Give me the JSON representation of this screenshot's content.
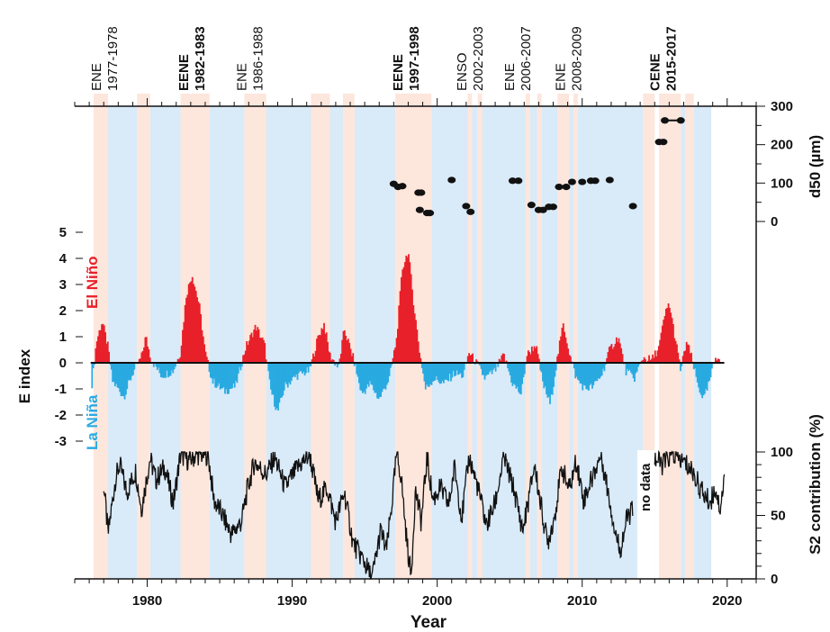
{
  "chart_data": {
    "type": "line",
    "x_axis": {
      "label": "Year",
      "range": [
        1975,
        2022
      ],
      "ticks": [
        1980,
        1990,
        2000,
        2010,
        2020
      ]
    },
    "e_index_axis": {
      "label": "E index",
      "range": [
        -3,
        5
      ],
      "ticks": [
        5,
        4,
        3,
        2,
        1,
        0,
        -1,
        -2,
        -3
      ]
    },
    "d50_axis": {
      "label": "d50 (µm)",
      "range": [
        0,
        300
      ],
      "ticks": [
        300,
        200,
        100,
        0
      ]
    },
    "s2_axis": {
      "label": "S2 contribution (%)",
      "range": [
        0,
        100
      ],
      "ticks": [
        100,
        50,
        0
      ]
    },
    "phase_labels": {
      "el_nino": "El Niño",
      "la_nina": "La Niña"
    },
    "colors": {
      "el_nino": "#e8202a",
      "la_nina": "#29aae1",
      "nino_shade": "#fde6dc",
      "nina_shade": "#d9eaf8",
      "line": "#111111"
    },
    "no_data_label": "no data",
    "event_labels": [
      {
        "type": "ENE",
        "years": "1977-1978",
        "x": 1977.0,
        "bold": false
      },
      {
        "type": "EENE",
        "years": "1982-1983",
        "x": 1983.0,
        "bold": true
      },
      {
        "type": "ENE",
        "years": "1986-1988",
        "x": 1987.0,
        "bold": false
      },
      {
        "type": "EENE",
        "years": "1997-1998",
        "x": 1997.8,
        "bold": true
      },
      {
        "type": "ENSO",
        "years": "2002-2003",
        "x": 2002.2,
        "bold": false
      },
      {
        "type": "ENE",
        "years": "2006-2007",
        "x": 2005.5,
        "bold": false
      },
      {
        "type": "ENE",
        "years": "2008-2009",
        "x": 2009.0,
        "bold": false
      },
      {
        "type": "CENE",
        "years": "2015-2017",
        "x": 2015.5,
        "bold": true
      }
    ],
    "nino_bands": [
      [
        1976.3,
        1977.3
      ],
      [
        1979.3,
        1980.2
      ],
      [
        1982.3,
        1984.3
      ],
      [
        1986.7,
        1988.2
      ],
      [
        1991.3,
        1992.6
      ],
      [
        1993.5,
        1994.3
      ],
      [
        1997.1,
        1999.6
      ],
      [
        2002.1,
        2002.4
      ],
      [
        2002.8,
        2003.1
      ],
      [
        2006.1,
        2006.4
      ],
      [
        2006.9,
        2007.2
      ],
      [
        2008.3,
        2009.1
      ],
      [
        2009.4,
        2009.7
      ],
      [
        2014.2,
        2015.0
      ],
      [
        2015.3,
        2016.8
      ],
      [
        2017.1,
        2017.7
      ]
    ],
    "nina_bands": [
      [
        1977.3,
        1979.3
      ],
      [
        1980.2,
        1982.3
      ],
      [
        1984.3,
        1986.7
      ],
      [
        1988.2,
        1991.3
      ],
      [
        1992.6,
        1993.5
      ],
      [
        1994.3,
        1997.1
      ],
      [
        1999.6,
        2002.1
      ],
      [
        2002.4,
        2002.8
      ],
      [
        2003.1,
        2006.1
      ],
      [
        2006.4,
        2006.9
      ],
      [
        2007.2,
        2008.3
      ],
      [
        2009.1,
        2009.4
      ],
      [
        2009.7,
        2014.2
      ],
      [
        2016.8,
        2017.1
      ],
      [
        2017.7,
        2018.9
      ]
    ],
    "e_index_keypoints": [
      [
        1976.2,
        -0.8
      ],
      [
        1976.5,
        0.8
      ],
      [
        1976.9,
        1.6
      ],
      [
        1977.3,
        0.6
      ],
      [
        1977.6,
        -0.7
      ],
      [
        1978.4,
        -1.3
      ],
      [
        1979.0,
        -0.4
      ],
      [
        1979.6,
        0.2
      ],
      [
        1979.9,
        1.0
      ],
      [
        1980.3,
        0.1
      ],
      [
        1981.0,
        -0.5
      ],
      [
        1981.8,
        -0.3
      ],
      [
        1982.3,
        0.4
      ],
      [
        1982.7,
        2.6
      ],
      [
        1983.1,
        3.4
      ],
      [
        1983.6,
        2.2
      ],
      [
        1984.0,
        0.4
      ],
      [
        1984.5,
        -0.7
      ],
      [
        1985.3,
        -1.1
      ],
      [
        1986.1,
        -0.9
      ],
      [
        1986.8,
        0.6
      ],
      [
        1987.5,
        1.4
      ],
      [
        1988.1,
        0.7
      ],
      [
        1988.5,
        -1.0
      ],
      [
        1989.0,
        -1.9
      ],
      [
        1989.5,
        -0.9
      ],
      [
        1990.3,
        -0.5
      ],
      [
        1991.2,
        -0.3
      ],
      [
        1991.8,
        1.0
      ],
      [
        1992.2,
        1.5
      ],
      [
        1992.6,
        0.3
      ],
      [
        1993.2,
        -0.2
      ],
      [
        1993.6,
        1.3
      ],
      [
        1994.2,
        0.2
      ],
      [
        1994.8,
        -1.2
      ],
      [
        1995.4,
        -0.8
      ],
      [
        1996.0,
        -1.4
      ],
      [
        1996.7,
        -0.6
      ],
      [
        1997.2,
        0.9
      ],
      [
        1997.6,
        3.6
      ],
      [
        1998.0,
        4.3
      ],
      [
        1998.4,
        2.2
      ],
      [
        1998.8,
        0.4
      ],
      [
        1999.2,
        -1.0
      ],
      [
        1999.8,
        -0.6
      ],
      [
        2000.5,
        -0.8
      ],
      [
        2001.2,
        -0.4
      ],
      [
        2001.8,
        -0.5
      ],
      [
        2002.2,
        0.4
      ],
      [
        2002.7,
        0.0
      ],
      [
        2003.3,
        -0.6
      ],
      [
        2004.0,
        -0.3
      ],
      [
        2004.6,
        0.3
      ],
      [
        2005.2,
        -0.8
      ],
      [
        2005.8,
        -1.2
      ],
      [
        2006.2,
        0.3
      ],
      [
        2006.8,
        0.7
      ],
      [
        2007.3,
        -0.8
      ],
      [
        2007.8,
        -1.6
      ],
      [
        2008.3,
        0.2
      ],
      [
        2008.7,
        1.5
      ],
      [
        2009.2,
        0.2
      ],
      [
        2009.6,
        -0.6
      ],
      [
        2010.2,
        -1.0
      ],
      [
        2010.8,
        -0.9
      ],
      [
        2011.4,
        -0.4
      ],
      [
        2011.9,
        0.5
      ],
      [
        2012.5,
        1.0
      ],
      [
        2013.0,
        -0.3
      ],
      [
        2013.6,
        -0.6
      ],
      [
        2014.2,
        0.2
      ],
      [
        2014.8,
        0.1
      ],
      [
        2015.3,
        0.6
      ],
      [
        2015.7,
        1.8
      ],
      [
        2016.0,
        2.3
      ],
      [
        2016.4,
        1.0
      ],
      [
        2016.8,
        -0.3
      ],
      [
        2017.2,
        0.8
      ],
      [
        2017.5,
        0.3
      ],
      [
        2018.0,
        -0.9
      ],
      [
        2018.4,
        -1.4
      ],
      [
        2018.8,
        -0.7
      ],
      [
        2019.2,
        0.2
      ],
      [
        2019.5,
        0.3
      ]
    ],
    "s2_keypoints": [
      [
        1977.0,
        75
      ],
      [
        1977.3,
        35
      ],
      [
        1977.8,
        78
      ],
      [
        1978.1,
        90
      ],
      [
        1978.6,
        68
      ],
      [
        1979.2,
        85
      ],
      [
        1979.6,
        55
      ],
      [
        1980.2,
        95
      ],
      [
        1980.6,
        78
      ],
      [
        1981.2,
        88
      ],
      [
        1981.8,
        60
      ],
      [
        1982.3,
        98
      ],
      [
        1982.9,
        93
      ],
      [
        1983.4,
        98
      ],
      [
        1984.2,
        98
      ],
      [
        1984.6,
        62
      ],
      [
        1985.2,
        50
      ],
      [
        1985.8,
        35
      ],
      [
        1986.5,
        45
      ],
      [
        1986.9,
        70
      ],
      [
        1987.4,
        92
      ],
      [
        1988.2,
        82
      ],
      [
        1988.8,
        96
      ],
      [
        1989.5,
        72
      ],
      [
        1990.4,
        88
      ],
      [
        1991.2,
        98
      ],
      [
        1991.8,
        62
      ],
      [
        1992.4,
        72
      ],
      [
        1993.0,
        45
      ],
      [
        1993.6,
        68
      ],
      [
        1994.2,
        28
      ],
      [
        1994.9,
        15
      ],
      [
        1995.5,
        0
      ],
      [
        1996.1,
        38
      ],
      [
        1996.5,
        22
      ],
      [
        1996.9,
        62
      ],
      [
        1997.2,
        98
      ],
      [
        1997.5,
        82
      ],
      [
        1997.9,
        30
      ],
      [
        1998.2,
        2
      ],
      [
        1998.5,
        70
      ],
      [
        1998.9,
        45
      ],
      [
        1999.3,
        96
      ],
      [
        1999.7,
        62
      ],
      [
        2000.2,
        72
      ],
      [
        2000.8,
        58
      ],
      [
        2001.2,
        88
      ],
      [
        2001.7,
        48
      ],
      [
        2002.2,
        96
      ],
      [
        2002.8,
        72
      ],
      [
        2003.4,
        42
      ],
      [
        2004.0,
        60
      ],
      [
        2004.6,
        96
      ],
      [
        2005.3,
        70
      ],
      [
        2005.9,
        38
      ],
      [
        2006.3,
        62
      ],
      [
        2006.7,
        90
      ],
      [
        2007.1,
        62
      ],
      [
        2007.6,
        28
      ],
      [
        2008.1,
        50
      ],
      [
        2008.6,
        88
      ],
      [
        2009.1,
        70
      ],
      [
        2009.6,
        93
      ],
      [
        2010.1,
        62
      ],
      [
        2010.7,
        80
      ],
      [
        2011.3,
        98
      ],
      [
        2011.8,
        68
      ],
      [
        2012.2,
        42
      ],
      [
        2012.6,
        22
      ],
      [
        2013.1,
        48
      ],
      [
        2013.5,
        55
      ]
    ],
    "s2_keypoints_after_gap": [
      [
        2015.0,
        95
      ],
      [
        2015.5,
        90
      ],
      [
        2016.2,
        98
      ],
      [
        2017.0,
        92
      ],
      [
        2017.6,
        85
      ],
      [
        2018.2,
        70
      ],
      [
        2018.8,
        60
      ],
      [
        2019.2,
        72
      ],
      [
        2019.5,
        55
      ],
      [
        2019.8,
        78
      ]
    ],
    "no_data_range": [
      2013.8,
      2015.0
    ],
    "d50_points": [
      [
        1997.0,
        98
      ],
      [
        1997.3,
        90
      ],
      [
        1997.6,
        92
      ],
      [
        1998.7,
        75
      ],
      [
        1998.9,
        75
      ],
      [
        1998.8,
        30
      ],
      [
        1999.3,
        22
      ],
      [
        1999.5,
        22
      ],
      [
        2001.0,
        108
      ],
      [
        2002.0,
        40
      ],
      [
        2002.3,
        25
      ],
      [
        2005.2,
        106
      ],
      [
        2005.6,
        106
      ],
      [
        2006.5,
        43
      ],
      [
        2007.0,
        30
      ],
      [
        2007.3,
        30
      ],
      [
        2007.7,
        38
      ],
      [
        2008.0,
        38
      ],
      [
        2008.4,
        90
      ],
      [
        2008.9,
        90
      ],
      [
        2009.3,
        103
      ],
      [
        2010.0,
        103
      ],
      [
        2010.6,
        106
      ],
      [
        2010.9,
        106
      ],
      [
        2011.9,
        108
      ],
      [
        2013.5,
        40
      ],
      [
        2015.3,
        207
      ],
      [
        2015.6,
        207
      ],
      [
        2015.7,
        263
      ],
      [
        2016.8,
        263
      ]
    ],
    "d50_ranges": [
      [
        2008.4,
        2008.9,
        90
      ],
      [
        2015.7,
        2016.8,
        263
      ]
    ]
  }
}
